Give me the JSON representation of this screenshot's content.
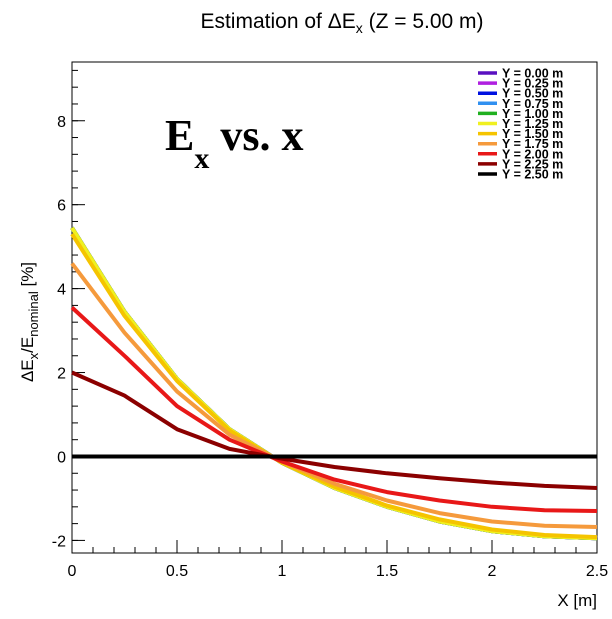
{
  "chart_data": {
    "type": "line",
    "title_prefix": "Estimation of ",
    "title_symbol": "ΔE",
    "title_sub": "x",
    "title_suffix": " (Z = 5.00 m)",
    "xlabel": "X [m]",
    "ylabel_parts": {
      "delta": "ΔE",
      "sub1": "x",
      "slash": "/E",
      "sub2": "nominal",
      "unit": " [%]"
    },
    "annotation": {
      "main": "E",
      "sub": "x",
      "rest": " vs. x"
    },
    "xlim": [
      0,
      2.5
    ],
    "ylim": [
      -2.3,
      9.4
    ],
    "x_ticks": [
      "0",
      "0.5",
      "1",
      "1.5",
      "2",
      "2.5"
    ],
    "y_ticks": [
      "-2",
      "0",
      "2",
      "4",
      "6",
      "8"
    ],
    "grid": false,
    "legend_position": "top-right",
    "x": [
      0,
      0.25,
      0.5,
      0.75,
      1.0,
      1.25,
      1.5,
      1.75,
      2.0,
      2.25,
      2.5
    ],
    "series": [
      {
        "name": "Y = 0.00 m",
        "color": "#5a10c0",
        "values": [
          5.45,
          3.45,
          1.85,
          0.65,
          -0.15,
          -0.75,
          -1.2,
          -1.55,
          -1.78,
          -1.9,
          -1.95
        ]
      },
      {
        "name": "Y = 0.25 m",
        "color": "#b020e0",
        "values": [
          5.45,
          3.45,
          1.85,
          0.65,
          -0.15,
          -0.75,
          -1.2,
          -1.55,
          -1.78,
          -1.9,
          -1.95
        ]
      },
      {
        "name": "Y = 0.50 m",
        "color": "#0010e0",
        "values": [
          5.45,
          3.45,
          1.85,
          0.65,
          -0.15,
          -0.75,
          -1.2,
          -1.55,
          -1.78,
          -1.9,
          -1.95
        ]
      },
      {
        "name": "Y = 0.75 m",
        "color": "#3090f0",
        "values": [
          5.45,
          3.45,
          1.85,
          0.65,
          -0.15,
          -0.75,
          -1.2,
          -1.55,
          -1.78,
          -1.9,
          -1.95
        ]
      },
      {
        "name": "Y = 1.00 m",
        "color": "#20b020",
        "values": [
          5.45,
          3.45,
          1.85,
          0.65,
          -0.15,
          -0.75,
          -1.2,
          -1.55,
          -1.78,
          -1.9,
          -1.95
        ]
      },
      {
        "name": "Y = 1.25 m",
        "color": "#f0f020",
        "values": [
          5.45,
          3.45,
          1.85,
          0.65,
          -0.15,
          -0.75,
          -1.2,
          -1.55,
          -1.78,
          -1.9,
          -1.95
        ]
      },
      {
        "name": "Y = 1.50 m",
        "color": "#f5c400",
        "values": [
          5.3,
          3.35,
          1.8,
          0.62,
          -0.15,
          -0.72,
          -1.17,
          -1.5,
          -1.74,
          -1.87,
          -1.92
        ]
      },
      {
        "name": "Y = 1.75 m",
        "color": "#f59a3c",
        "values": [
          4.6,
          2.95,
          1.55,
          0.52,
          -0.12,
          -0.65,
          -1.05,
          -1.35,
          -1.55,
          -1.65,
          -1.68
        ]
      },
      {
        "name": "Y = 2.00 m",
        "color": "#e81818",
        "values": [
          3.55,
          2.4,
          1.2,
          0.4,
          -0.12,
          -0.55,
          -0.85,
          -1.05,
          -1.2,
          -1.28,
          -1.3
        ]
      },
      {
        "name": "Y = 2.25 m",
        "color": "#8b0000",
        "values": [
          2.0,
          1.45,
          0.65,
          0.18,
          -0.05,
          -0.25,
          -0.4,
          -0.52,
          -0.62,
          -0.7,
          -0.75
        ]
      },
      {
        "name": "Y = 2.50 m",
        "color": "#000000",
        "values": [
          0,
          0,
          0,
          0,
          0,
          0,
          0,
          0,
          0,
          0,
          0
        ]
      }
    ]
  }
}
